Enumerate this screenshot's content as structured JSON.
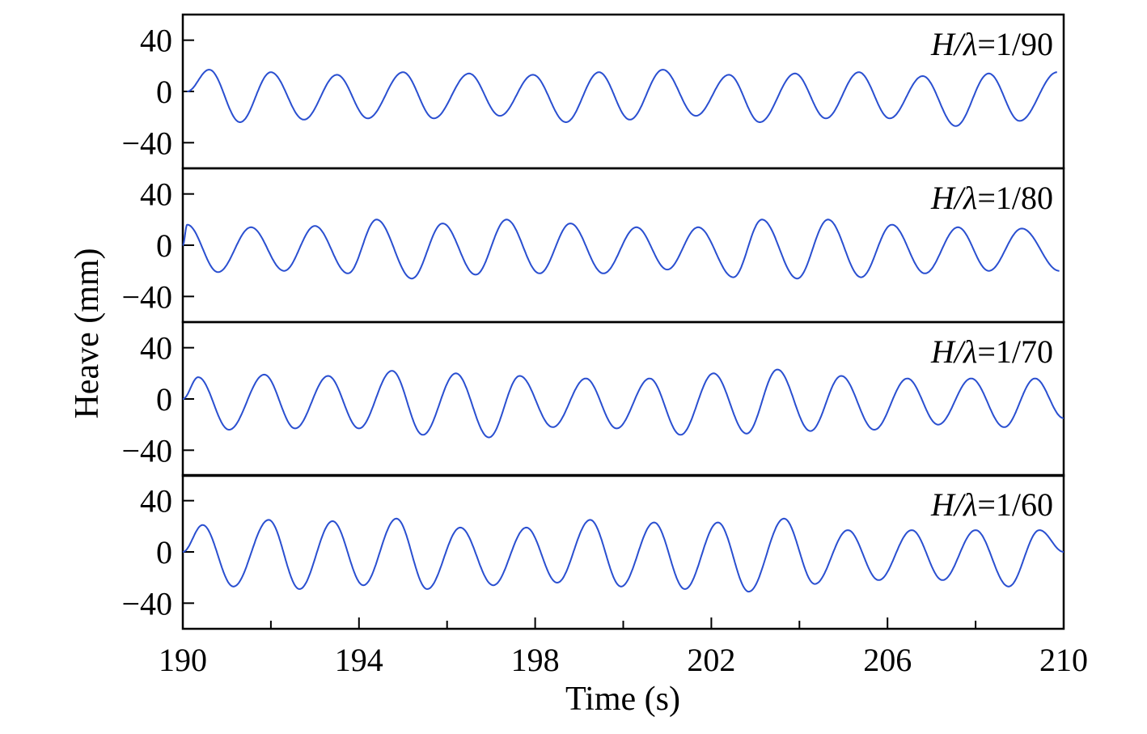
{
  "chart_data": {
    "type": "line",
    "layout": "stacked-panels",
    "xlabel": "Time (s)",
    "ylabel": "Heave (mm)",
    "xlim": [
      190,
      210
    ],
    "x_ticks": [
      190,
      194,
      198,
      202,
      206,
      210
    ],
    "x_minor_ticks": [
      192,
      196,
      200,
      204,
      208
    ],
    "series_color": "#2a4fd0",
    "panels": [
      {
        "label_italic": "H/λ",
        "label_value": "=1/90",
        "ylim": [
          -60,
          60
        ],
        "y_ticks": [
          40,
          0,
          -40
        ],
        "y_tick_labels": [
          "40",
          "0",
          "−40"
        ],
        "x_at_zero_start": 190.1,
        "peaks": [
          {
            "x": 190.6,
            "y": 17
          },
          {
            "x": 192.0,
            "y": 15
          },
          {
            "x": 193.5,
            "y": 13
          },
          {
            "x": 195.0,
            "y": 15
          },
          {
            "x": 196.5,
            "y": 14
          },
          {
            "x": 197.95,
            "y": 13
          },
          {
            "x": 199.45,
            "y": 15
          },
          {
            "x": 200.9,
            "y": 17
          },
          {
            "x": 202.4,
            "y": 13
          },
          {
            "x": 203.9,
            "y": 14
          },
          {
            "x": 205.35,
            "y": 15
          },
          {
            "x": 206.8,
            "y": 12
          },
          {
            "x": 208.3,
            "y": 14
          },
          {
            "x": 209.85,
            "y": 15
          }
        ],
        "troughs": [
          {
            "x": 191.3,
            "y": -24
          },
          {
            "x": 192.75,
            "y": -22
          },
          {
            "x": 194.2,
            "y": -21
          },
          {
            "x": 195.7,
            "y": -21
          },
          {
            "x": 197.2,
            "y": -19
          },
          {
            "x": 198.7,
            "y": -24
          },
          {
            "x": 200.15,
            "y": -22
          },
          {
            "x": 201.65,
            "y": -19
          },
          {
            "x": 203.1,
            "y": -24
          },
          {
            "x": 204.6,
            "y": -21
          },
          {
            "x": 206.05,
            "y": -21
          },
          {
            "x": 207.55,
            "y": -27
          },
          {
            "x": 209.0,
            "y": -23
          }
        ]
      },
      {
        "label_italic": "H/λ",
        "label_value": "=1/80",
        "ylim": [
          -60,
          60
        ],
        "y_ticks": [
          40,
          0,
          -40
        ],
        "y_tick_labels": [
          "40",
          "0",
          "−40"
        ],
        "x_at_zero_start": 190.0,
        "peaks": [
          {
            "x": 190.1,
            "y": 16
          },
          {
            "x": 191.55,
            "y": 14
          },
          {
            "x": 193.0,
            "y": 15
          },
          {
            "x": 194.4,
            "y": 20
          },
          {
            "x": 195.9,
            "y": 17
          },
          {
            "x": 197.35,
            "y": 20
          },
          {
            "x": 198.8,
            "y": 17
          },
          {
            "x": 200.3,
            "y": 14
          },
          {
            "x": 201.7,
            "y": 14
          },
          {
            "x": 203.15,
            "y": 20
          },
          {
            "x": 204.65,
            "y": 20
          },
          {
            "x": 206.1,
            "y": 16
          },
          {
            "x": 207.6,
            "y": 14
          },
          {
            "x": 209.05,
            "y": 13
          }
        ],
        "troughs": [
          {
            "x": 190.8,
            "y": -21
          },
          {
            "x": 192.3,
            "y": -20
          },
          {
            "x": 193.75,
            "y": -22
          },
          {
            "x": 195.2,
            "y": -26
          },
          {
            "x": 196.65,
            "y": -23
          },
          {
            "x": 198.1,
            "y": -22
          },
          {
            "x": 199.55,
            "y": -22
          },
          {
            "x": 201.0,
            "y": -19
          },
          {
            "x": 202.5,
            "y": -25
          },
          {
            "x": 203.95,
            "y": -26
          },
          {
            "x": 205.4,
            "y": -25
          },
          {
            "x": 206.85,
            "y": -22
          },
          {
            "x": 208.3,
            "y": -20
          },
          {
            "x": 209.9,
            "y": -20
          }
        ]
      },
      {
        "label_italic": "H/λ",
        "label_value": "=1/70",
        "ylim": [
          -60,
          60
        ],
        "y_ticks": [
          40,
          0,
          -40
        ],
        "y_tick_labels": [
          "40",
          "0",
          "−40"
        ],
        "x_at_zero_start": 190.0,
        "peaks": [
          {
            "x": 190.35,
            "y": 17
          },
          {
            "x": 191.85,
            "y": 19
          },
          {
            "x": 193.3,
            "y": 18
          },
          {
            "x": 194.75,
            "y": 22
          },
          {
            "x": 196.2,
            "y": 20
          },
          {
            "x": 197.65,
            "y": 18
          },
          {
            "x": 199.15,
            "y": 16
          },
          {
            "x": 200.6,
            "y": 16
          },
          {
            "x": 202.05,
            "y": 20
          },
          {
            "x": 203.5,
            "y": 23
          },
          {
            "x": 204.95,
            "y": 18
          },
          {
            "x": 206.45,
            "y": 16
          },
          {
            "x": 207.9,
            "y": 16
          },
          {
            "x": 209.35,
            "y": 16
          }
        ],
        "troughs": [
          {
            "x": 191.05,
            "y": -24
          },
          {
            "x": 192.55,
            "y": -23
          },
          {
            "x": 194.0,
            "y": -23
          },
          {
            "x": 195.45,
            "y": -28
          },
          {
            "x": 196.95,
            "y": -30
          },
          {
            "x": 198.4,
            "y": -22
          },
          {
            "x": 199.85,
            "y": -23
          },
          {
            "x": 201.3,
            "y": -28
          },
          {
            "x": 202.8,
            "y": -27
          },
          {
            "x": 204.25,
            "y": -25
          },
          {
            "x": 205.7,
            "y": -24
          },
          {
            "x": 207.15,
            "y": -20
          },
          {
            "x": 208.65,
            "y": -22
          },
          {
            "x": 210.0,
            "y": -15
          }
        ]
      },
      {
        "label_italic": "H/λ",
        "label_value": "=1/60",
        "ylim": [
          -60,
          60
        ],
        "y_ticks": [
          40,
          0,
          -40
        ],
        "y_tick_labels": [
          "40",
          "0",
          "−40"
        ],
        "x_at_zero_start": 190.0,
        "peaks": [
          {
            "x": 190.45,
            "y": 21
          },
          {
            "x": 191.95,
            "y": 25
          },
          {
            "x": 193.4,
            "y": 24
          },
          {
            "x": 194.85,
            "y": 26
          },
          {
            "x": 196.3,
            "y": 19
          },
          {
            "x": 197.8,
            "y": 19
          },
          {
            "x": 199.25,
            "y": 25
          },
          {
            "x": 200.7,
            "y": 23
          },
          {
            "x": 202.15,
            "y": 23
          },
          {
            "x": 203.65,
            "y": 26
          },
          {
            "x": 205.1,
            "y": 17
          },
          {
            "x": 206.55,
            "y": 17
          },
          {
            "x": 208.0,
            "y": 17
          },
          {
            "x": 209.45,
            "y": 17
          }
        ],
        "troughs": [
          {
            "x": 191.15,
            "y": -27
          },
          {
            "x": 192.65,
            "y": -29
          },
          {
            "x": 194.1,
            "y": -26
          },
          {
            "x": 195.55,
            "y": -29
          },
          {
            "x": 197.05,
            "y": -26
          },
          {
            "x": 198.5,
            "y": -24
          },
          {
            "x": 199.95,
            "y": -27
          },
          {
            "x": 201.4,
            "y": -29
          },
          {
            "x": 202.85,
            "y": -31
          },
          {
            "x": 204.35,
            "y": -25
          },
          {
            "x": 205.8,
            "y": -22
          },
          {
            "x": 207.25,
            "y": -22
          },
          {
            "x": 208.75,
            "y": -27
          },
          {
            "x": 210.0,
            "y": 0
          }
        ]
      }
    ]
  }
}
